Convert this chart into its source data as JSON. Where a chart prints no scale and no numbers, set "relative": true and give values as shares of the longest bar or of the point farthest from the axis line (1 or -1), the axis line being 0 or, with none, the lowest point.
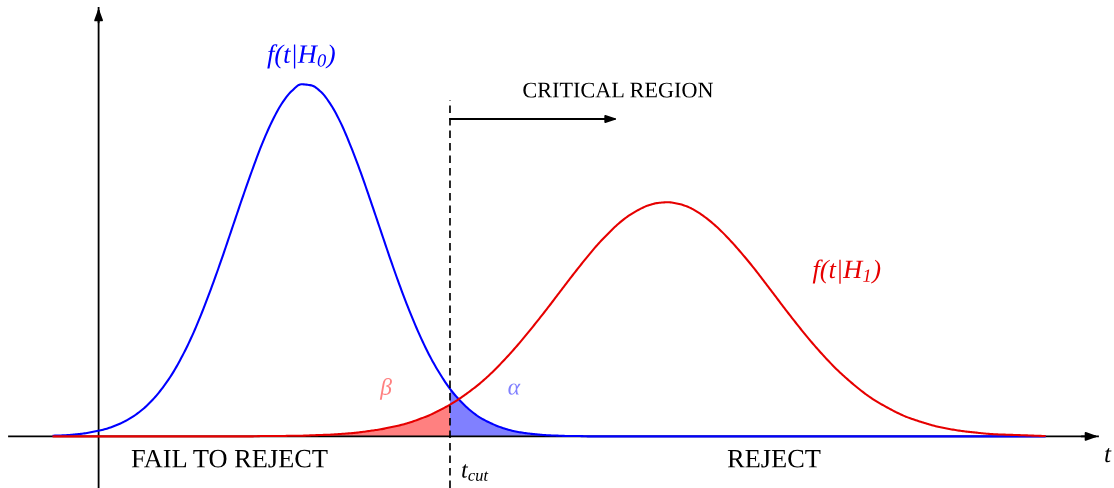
{
  "chart_data": {
    "type": "line",
    "relative": true,
    "xlabel": "t",
    "tick_labels": false,
    "categories": [
      null,
      null,
      null,
      null,
      null,
      null,
      null,
      null,
      null,
      null,
      null,
      null,
      null,
      null,
      null,
      null,
      null,
      null,
      null,
      null,
      null,
      null,
      null,
      null,
      null,
      null,
      null,
      null,
      null,
      null,
      null,
      null,
      null,
      null,
      null,
      null,
      null,
      null,
      null,
      null,
      null,
      null,
      null,
      null,
      null,
      null,
      null,
      null,
      null,
      null,
      null,
      null,
      null,
      null,
      null,
      null,
      null,
      null,
      null,
      null,
      null,
      null,
      null,
      null,
      null,
      null,
      null,
      null,
      null,
      null,
      null,
      null,
      null,
      null,
      null,
      null,
      null,
      null,
      null,
      null,
      null,
      null,
      null,
      null,
      null,
      null,
      null,
      null,
      null,
      null,
      null,
      null,
      null,
      null,
      null,
      null,
      null,
      null,
      null,
      null,
      null
    ],
    "series": [
      {
        "name": "f(t|H$_{0}$)",
        "color": "#0000ff",
        "values": [
          0.002,
          0.003,
          0.005,
          0.008,
          0.013,
          0.019,
          0.028,
          0.04,
          0.056,
          0.077,
          0.104,
          0.138,
          0.179,
          0.229,
          0.287,
          0.354,
          0.428,
          0.507,
          0.59,
          0.673,
          0.753,
          0.828,
          0.892,
          0.944,
          0.98,
          1,
          0.997,
          0.978,
          0.941,
          0.889,
          0.823,
          0.749,
          0.668,
          0.585,
          0.502,
          0.423,
          0.35,
          0.284,
          0.226,
          0.177,
          0.135,
          0.102,
          0.075,
          0.054,
          0.039,
          0.027,
          0.018,
          0.012,
          0.008,
          0.005,
          0.003,
          0.002,
          0.001,
          0.001,
          0,
          0,
          0,
          0,
          0,
          0,
          0,
          0,
          0,
          0,
          0,
          0,
          0,
          0,
          0,
          0,
          0,
          0,
          0,
          0,
          0,
          0,
          0,
          0,
          0,
          0,
          0,
          0,
          0,
          0,
          0,
          0,
          0,
          0,
          0,
          0,
          0,
          0,
          0,
          0,
          0,
          0,
          0,
          0,
          0,
          0,
          0
        ]
      },
      {
        "name": "f(t|H$_{1}$)",
        "color": "#e60000",
        "values": [
          0,
          0,
          0,
          0,
          0,
          0,
          0,
          0,
          0,
          0,
          0,
          0,
          0,
          0,
          0,
          0,
          0,
          0,
          0,
          0,
          0,
          0.001,
          0.001,
          0.001,
          0.002,
          0.002,
          0.003,
          0.004,
          0.005,
          0.007,
          0.009,
          0.012,
          0.016,
          0.02,
          0.026,
          0.032,
          0.04,
          0.05,
          0.061,
          0.075,
          0.09,
          0.108,
          0.128,
          0.15,
          0.175,
          0.203,
          0.233,
          0.265,
          0.299,
          0.334,
          0.37,
          0.407,
          0.444,
          0.48,
          0.515,
          0.548,
          0.577,
          0.604,
          0.626,
          0.643,
          0.656,
          0.663,
          0.665,
          0.661,
          0.652,
          0.637,
          0.617,
          0.593,
          0.565,
          0.534,
          0.501,
          0.466,
          0.429,
          0.392,
          0.355,
          0.319,
          0.284,
          0.251,
          0.22,
          0.191,
          0.165,
          0.141,
          0.119,
          0.1,
          0.084,
          0.069,
          0.056,
          0.046,
          0.037,
          0.029,
          0.023,
          0.018,
          0.014,
          0.011,
          0.008,
          0.006,
          0.005,
          0.004,
          0.003,
          0.002,
          0.001
        ]
      },
      {
        "name": "β",
        "type": "area",
        "color": "#ff8080",
        "values": [
          null,
          null,
          null,
          null,
          null,
          null,
          null,
          null,
          null,
          null,
          null,
          null,
          null,
          null,
          null,
          null,
          null,
          null,
          null,
          null,
          0,
          0.001,
          0.001,
          0.001,
          0.002,
          0.002,
          0.003,
          0.004,
          0.005,
          0.007,
          0.009,
          0.012,
          0.016,
          0.02,
          0.026,
          0.032,
          0.04,
          0.05,
          0.061,
          0.075,
          0.09,
          null,
          null,
          null,
          null,
          null,
          null,
          null,
          null,
          null,
          null,
          null,
          null,
          null,
          null,
          null,
          null,
          null,
          null,
          null,
          null,
          null,
          null,
          null,
          null,
          null,
          null,
          null,
          null,
          null,
          null,
          null,
          null,
          null,
          null,
          null,
          null,
          null,
          null,
          null,
          null,
          null,
          null,
          null,
          null,
          null,
          null,
          null,
          null,
          null,
          null,
          null,
          null,
          null,
          null,
          null,
          null,
          null,
          null,
          null,
          null
        ]
      },
      {
        "name": "α",
        "type": "area",
        "color": "#8080ff",
        "values": [
          null,
          null,
          null,
          null,
          null,
          null,
          null,
          null,
          null,
          null,
          null,
          null,
          null,
          null,
          null,
          null,
          null,
          null,
          null,
          null,
          null,
          null,
          null,
          null,
          null,
          null,
          null,
          null,
          null,
          null,
          null,
          null,
          null,
          null,
          null,
          null,
          null,
          null,
          null,
          null,
          0.135,
          0.102,
          0.075,
          0.054,
          0.039,
          0.027,
          0.018,
          0.012,
          0.008,
          0.005,
          0.003,
          0.002,
          0.001,
          0.001,
          0,
          null,
          null,
          null,
          null,
          null,
          null,
          null,
          null,
          null,
          null,
          null,
          null,
          null,
          null,
          null,
          null,
          null,
          null,
          null,
          null,
          null,
          null,
          null,
          null,
          null,
          null,
          null,
          null,
          null,
          null,
          null,
          null,
          null,
          null,
          null,
          null,
          null,
          null,
          null,
          null,
          null,
          null,
          null,
          null,
          null,
          null
        ]
      }
    ],
    "annotations": [
      "CRITICAL REGION",
      "t$_{cut}$",
      "FAIL TO REJECT",
      "REJECT"
    ]
  }
}
